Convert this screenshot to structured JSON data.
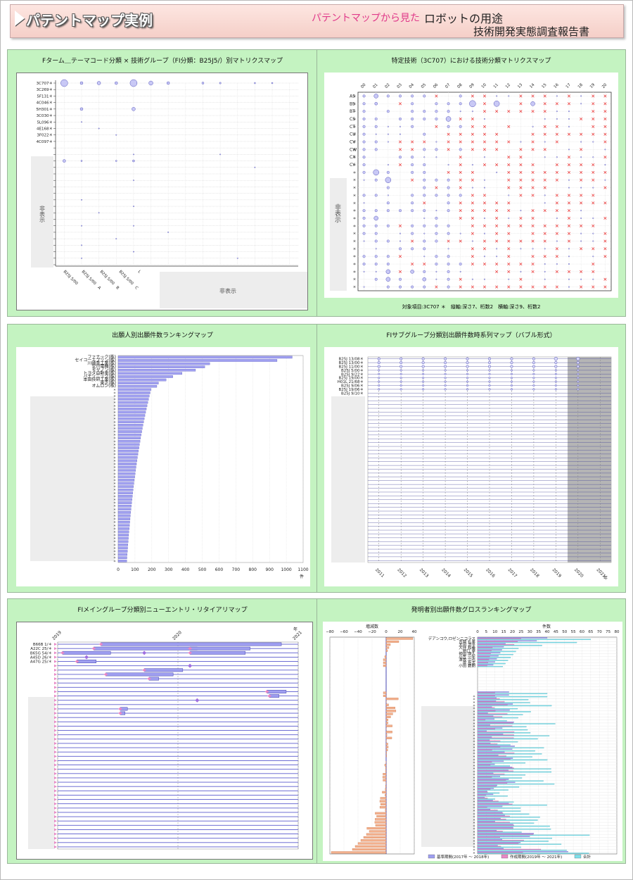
{
  "banner": {
    "title": "パテントマップ実例",
    "subtitle_pink": "パテントマップから見た",
    "subtitle_main": "ロボットの用途",
    "subtitle_report": "技術開発実態調査報告書"
  },
  "colors": {
    "bubble": "#7777dd",
    "cross": "#e33",
    "bar": "#8888ee",
    "pink": "#e889c6",
    "panel": "#c4f3c1",
    "gray": "#bdbdbd"
  },
  "chart_data": [
    {
      "id": "p1",
      "type": "scatter",
      "title": "Fターム＿テーマコード分類 × 技術グループ（FI分類：B25J5/）別マトリクスマップ",
      "rows": [
        "3C707",
        "3C269",
        "5F131",
        "4C046",
        "5H301",
        "3C030",
        "5L096",
        "4E168",
        "3F022",
        "4C097"
      ],
      "columns": [
        "B25J 5/00",
        "B25J 5/00　A",
        "B25J 5/00　B",
        "B25J 5/00　C",
        "L"
      ],
      "hidden_label_left": "非表示",
      "hidden_label_bottom": "非表示"
    },
    {
      "id": "p2",
      "type": "scatter",
      "title": "特定技術（3C707）における技術分類マトリクスマップ",
      "columns": [
        "00",
        "01",
        "02",
        "03",
        "04",
        "05",
        "06",
        "07",
        "08",
        "09",
        "10",
        "11",
        "12",
        "13",
        "14",
        "15",
        "16",
        "17",
        "18",
        "19",
        "20"
      ],
      "rows": [
        "AS",
        "BS",
        "BT",
        "CS",
        "CT",
        "CU",
        "CV",
        "CW",
        "CX",
        "CY"
      ],
      "hidden_label": "非表示",
      "footer": "対象項目:3C707 ＊　縦軸:深さ7、桁数2　横軸:深さ9、桁数2"
    },
    {
      "id": "p3",
      "type": "bar",
      "title": "出願人別出願件数ランキングマップ",
      "categories": [
        "ファナック(株)",
        "セイコーエプソン(株)",
        "川崎重工業(株)",
        "安川電機(株)",
        "キヤノン(株)",
        "トヨタ自動車(株)",
        "パナソニック(株)",
        "本田技研工業(株)",
        "東芝(株)",
        "オムロン(株)"
      ],
      "values": [
        1035,
        945,
        545,
        515,
        460,
        380,
        325,
        285,
        240,
        230
      ],
      "ticks": [
        "0",
        "100",
        "200",
        "300",
        "400",
        "500",
        "600",
        "700",
        "800",
        "900",
        "1000",
        "1100"
      ],
      "unit": "件",
      "xlim": [
        0,
        1100
      ]
    },
    {
      "id": "p4",
      "type": "scatter",
      "title": "FIサブグループ分類別出願件数時系列マップ（バブル形式）",
      "rows": [
        "B25J 13/08",
        "B25J 13/00",
        "B25J 11/00",
        "B25J  5/00",
        "B25J  9/22",
        "B25J 19/00",
        "H01L 21/68",
        "B25J  9/06",
        "B25J 19/06",
        "B25J  9/10"
      ],
      "years": [
        "2011",
        "2012",
        "2013",
        "2014",
        "2015",
        "2016",
        "2017",
        "2018",
        "2019",
        "2020",
        "2021"
      ],
      "unit": "年"
    },
    {
      "id": "p5",
      "type": "bar",
      "title": "FIメイングループ分類別ニューエントリ・リタイアリマップ",
      "rows": [
        "B66B  1/＊",
        "A22C 25/＊",
        "B65G 54/＊",
        "A45D 26/＊",
        "A47G 25/＊"
      ],
      "years": [
        "2019",
        "2020",
        "2021"
      ],
      "unit": "年"
    },
    {
      "id": "p6",
      "type": "bar",
      "title": "発明者別出願件数グロスランキングマップ",
      "left_axis_title": "増減数",
      "left_ticks": [
        "−80",
        "−60",
        "−40",
        "−20",
        "0",
        "20",
        "40"
      ],
      "right_axis_title": "件数",
      "right_ticks": [
        "0",
        "5",
        "10",
        "15",
        "20",
        "25",
        "30",
        "35",
        "40",
        "45",
        "50",
        "55",
        "60",
        "65",
        "70",
        "75",
        "80"
      ],
      "names": [
        "デアンコウ,ロゼンニコラス",
        "吉岡 孔孝",
        "太田 浩平",
        "大伴 和義",
        "相口 幸",
        "神田 康久",
        "小笠 一年",
        "津坂 宗也",
        "岸 岳志",
        "小田 碧朗"
      ],
      "legend": [
        "基準期間(2017年 ～ 2018年)",
        "作成期間(2019年 ～ 2021年)",
        "合計"
      ]
    }
  ]
}
